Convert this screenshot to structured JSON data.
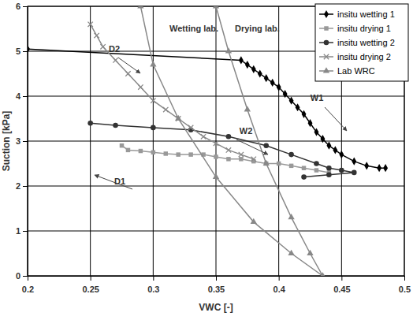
{
  "chart_data": {
    "type": "line",
    "x_label": "VWC [-]",
    "y_label": "Suction [kPa]",
    "xlim": [
      0.2,
      0.5
    ],
    "ylim": [
      0,
      6
    ],
    "xticks": [
      0.2,
      0.25,
      0.3,
      0.35,
      0.4,
      0.45,
      0.5
    ],
    "yticks": [
      0,
      1,
      2,
      3,
      4,
      5,
      6
    ],
    "grid": true,
    "legend": "upper right",
    "annotations": [
      "Wetting lab.",
      "Drying lab.",
      "D2",
      "W1",
      "W2",
      "D1"
    ],
    "series": [
      {
        "name": "insitu wetting 1",
        "color": "#000000",
        "marker": "diamond",
        "line_style": "solid",
        "x": [
          0.2,
          0.37,
          0.375,
          0.38,
          0.385,
          0.39,
          0.395,
          0.4,
          0.405,
          0.41,
          0.415,
          0.42,
          0.425,
          0.43,
          0.435,
          0.44,
          0.445,
          0.45,
          0.46,
          0.47,
          0.48,
          0.485
        ],
        "values": [
          5.05,
          4.8,
          4.7,
          4.6,
          4.5,
          4.4,
          4.3,
          4.2,
          4.05,
          3.9,
          3.75,
          3.6,
          3.4,
          3.2,
          3.05,
          2.9,
          2.8,
          2.7,
          2.55,
          2.45,
          2.4,
          2.4
        ]
      },
      {
        "name": "insitu drying 1",
        "color": "#999999",
        "marker": "square",
        "line_style": "solid",
        "x": [
          0.44,
          0.43,
          0.42,
          0.41,
          0.4,
          0.39,
          0.38,
          0.37,
          0.36,
          0.35,
          0.34,
          0.33,
          0.32,
          0.31,
          0.3,
          0.29,
          0.28,
          0.275
        ],
        "values": [
          2.3,
          2.35,
          2.4,
          2.45,
          2.5,
          2.5,
          2.55,
          2.6,
          2.6,
          2.65,
          2.7,
          2.7,
          2.7,
          2.72,
          2.75,
          2.78,
          2.8,
          2.9
        ]
      },
      {
        "name": "insitu wetting 2",
        "color": "#333333",
        "marker": "circle",
        "line_style": "solid",
        "x": [
          0.25,
          0.27,
          0.3,
          0.33,
          0.36,
          0.39,
          0.41,
          0.43,
          0.44,
          0.45,
          0.46,
          0.44,
          0.42
        ],
        "values": [
          3.4,
          3.35,
          3.3,
          3.25,
          3.1,
          2.9,
          2.7,
          2.5,
          2.4,
          2.35,
          2.3,
          2.25,
          2.2
        ]
      },
      {
        "name": "insitu drying 2",
        "color": "#888888",
        "marker": "x",
        "line_style": "solid",
        "x": [
          0.38,
          0.37,
          0.36,
          0.35,
          0.34,
          0.33,
          0.32,
          0.31,
          0.3,
          0.29,
          0.28,
          0.27,
          0.26,
          0.255,
          0.25
        ],
        "values": [
          2.6,
          2.7,
          2.8,
          2.95,
          3.1,
          3.3,
          3.5,
          3.7,
          3.9,
          4.2,
          4.5,
          4.8,
          5.1,
          5.35,
          5.6
        ]
      },
      {
        "name": "Lab WRC",
        "color": "#888888",
        "marker": "triangle",
        "line_style": "solid",
        "x": [
          0.29,
          0.3,
          0.32,
          0.35,
          0.38,
          0.41,
          0.435,
          0.425,
          0.41,
          0.39,
          0.375,
          0.36,
          0.35
        ],
        "values": [
          6,
          4.7,
          3.5,
          2.2,
          1.2,
          0.5,
          0,
          0.5,
          1.3,
          2.5,
          3.7,
          5,
          6
        ]
      }
    ]
  }
}
